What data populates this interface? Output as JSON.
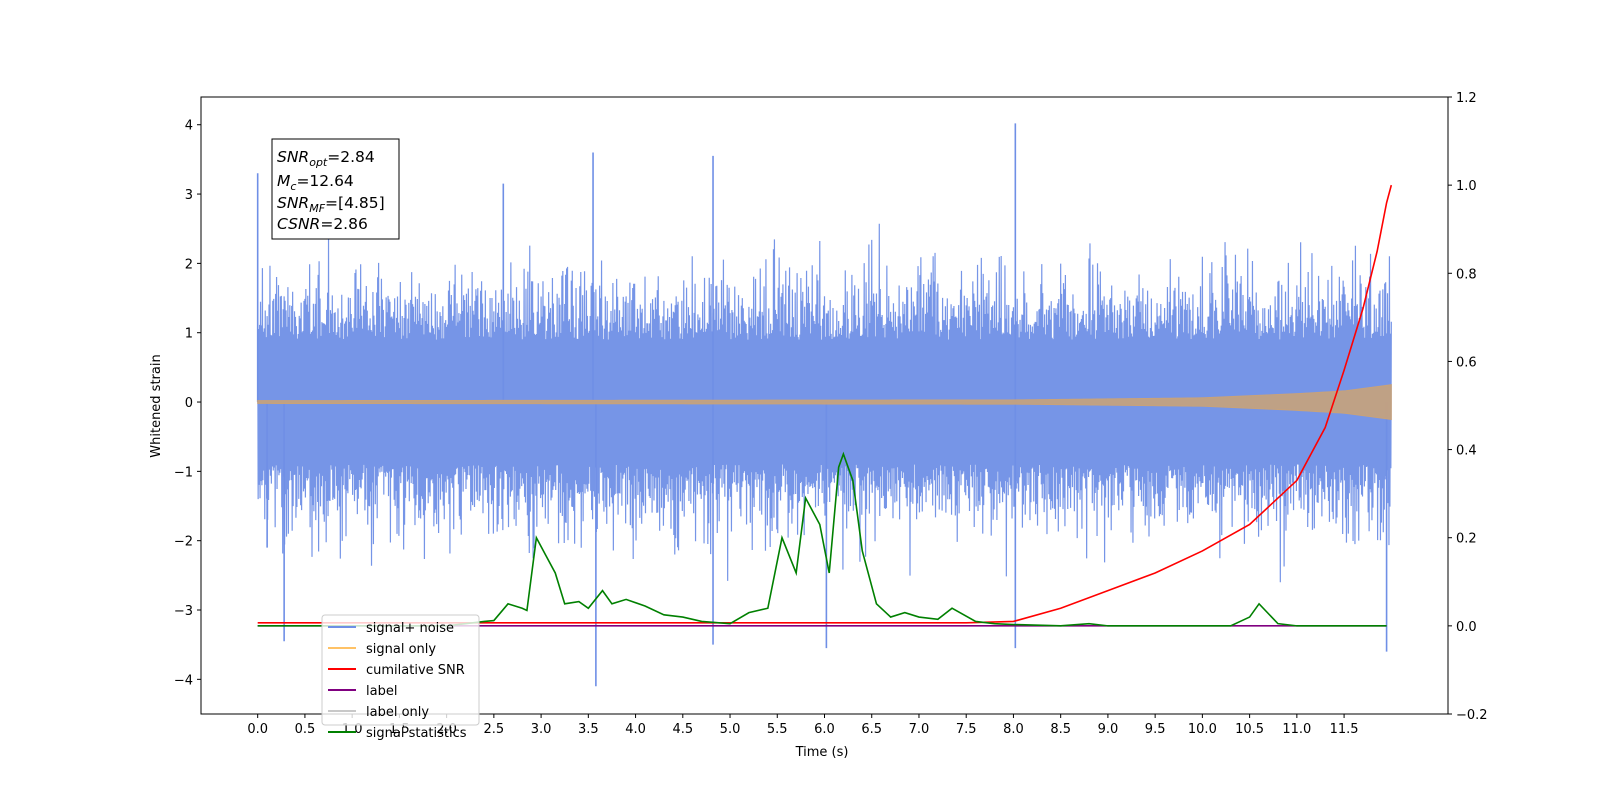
{
  "chart_data": {
    "type": "line",
    "title": "",
    "xlabel": "Time (s)",
    "ylabel": "Whitened strain",
    "xlim": [
      -0.6,
      12.6
    ],
    "ylim": [
      -4.5,
      4.4
    ],
    "y2lim": [
      -0.2,
      1.2
    ],
    "xticks": [
      "0.0",
      "0.5",
      "1.0",
      "1.5",
      "2.0",
      "2.5",
      "3.0",
      "3.5",
      "4.0",
      "4.5",
      "5.0",
      "5.5",
      "6.0",
      "6.5",
      "7.0",
      "7.5",
      "8.0",
      "8.5",
      "9.0",
      "9.5",
      "10.0",
      "10.5",
      "11.0",
      "11.5"
    ],
    "yticks": [
      4,
      3,
      2,
      1,
      0,
      -1,
      -2,
      -3,
      -4
    ],
    "y2ticks": [
      "1.2",
      "1.0",
      "0.8",
      "0.6",
      "0.4",
      "0.2",
      "0.0",
      "−0.2"
    ],
    "ytick_labels": [
      "4",
      "3",
      "2",
      "1",
      "0",
      "−1",
      "−2",
      "−3",
      "−4"
    ],
    "grid": false,
    "legend_position": "lower-left",
    "legend": [
      {
        "name": "signal+ noise",
        "color": "#6f8fe6"
      },
      {
        "name": "signal only",
        "color": "#ffc266"
      },
      {
        "name": "cumilative SNR",
        "color": "#ff0000"
      },
      {
        "name": "label",
        "color": "#800080"
      },
      {
        "name": "label only",
        "color": "#c8c8c8"
      },
      {
        "name": "signal statistics",
        "color": "#008000"
      }
    ],
    "stats_box": {
      "snr_opt_label": "SNR",
      "snr_opt_sub": "opt",
      "snr_opt_value": "=2.84",
      "mc_label": "M",
      "mc_sub": "c",
      "mc_value": "=12.64",
      "snr_mf_label": "SNR",
      "snr_mf_sub": "MF",
      "snr_mf_value": "=[4.85]",
      "csnr_label": "CSNR",
      "csnr_value": "=2.86"
    },
    "series": [
      {
        "name": "signal+ noise",
        "axis": "left",
        "note": "whitened noisy strain, amplitude approx 1 with spikes to ~4",
        "peaks": [
          {
            "x": 0.0,
            "y": 3.3
          },
          {
            "x": 0.1,
            "y": -2.1
          },
          {
            "x": 0.28,
            "y": -3.45
          },
          {
            "x": 2.6,
            "y": 3.15
          },
          {
            "x": 3.55,
            "y": 3.6
          },
          {
            "x": 3.58,
            "y": -4.1
          },
          {
            "x": 4.82,
            "y": 3.55
          },
          {
            "x": 4.82,
            "y": -3.5
          },
          {
            "x": 6.02,
            "y": -3.55
          },
          {
            "x": 8.02,
            "y": 4.02
          },
          {
            "x": 8.02,
            "y": -3.55
          },
          {
            "x": 11.95,
            "y": -3.6
          }
        ]
      },
      {
        "name": "signal only",
        "axis": "left",
        "note": "chirp amplitude grows toward merger",
        "envelope": [
          [
            0.0,
            0.02
          ],
          [
            8.0,
            0.03
          ],
          [
            10.0,
            0.06
          ],
          [
            11.0,
            0.12
          ],
          [
            11.5,
            0.16
          ],
          [
            12.0,
            0.25
          ]
        ]
      },
      {
        "name": "cumilative SNR",
        "axis": "right",
        "points": [
          [
            0.0,
            0.007
          ],
          [
            7.5,
            0.007
          ],
          [
            8.0,
            0.01
          ],
          [
            8.5,
            0.04
          ],
          [
            9.0,
            0.08
          ],
          [
            9.5,
            0.12
          ],
          [
            10.0,
            0.17
          ],
          [
            10.5,
            0.23
          ],
          [
            11.0,
            0.33
          ],
          [
            11.3,
            0.45
          ],
          [
            11.5,
            0.58
          ],
          [
            11.7,
            0.72
          ],
          [
            11.85,
            0.85
          ],
          [
            11.95,
            0.96
          ],
          [
            12.0,
            1.0
          ]
        ]
      },
      {
        "name": "label",
        "axis": "right",
        "points": [
          [
            0.0,
            0.0
          ],
          [
            11.95,
            0.0
          ]
        ]
      },
      {
        "name": "signal statistics",
        "axis": "right",
        "points": [
          [
            0.0,
            0.0
          ],
          [
            2.0,
            0.0
          ],
          [
            2.2,
            0.005
          ],
          [
            2.4,
            0.01
          ],
          [
            2.5,
            0.012
          ],
          [
            2.65,
            0.05
          ],
          [
            2.8,
            0.04
          ],
          [
            2.85,
            0.035
          ],
          [
            2.95,
            0.2
          ],
          [
            3.05,
            0.16
          ],
          [
            3.15,
            0.12
          ],
          [
            3.25,
            0.05
          ],
          [
            3.4,
            0.055
          ],
          [
            3.5,
            0.04
          ],
          [
            3.65,
            0.08
          ],
          [
            3.75,
            0.05
          ],
          [
            3.9,
            0.06
          ],
          [
            4.1,
            0.045
          ],
          [
            4.3,
            0.025
          ],
          [
            4.5,
            0.02
          ],
          [
            4.7,
            0.01
          ],
          [
            5.0,
            0.005
          ],
          [
            5.2,
            0.03
          ],
          [
            5.4,
            0.04
          ],
          [
            5.55,
            0.2
          ],
          [
            5.7,
            0.12
          ],
          [
            5.8,
            0.29
          ],
          [
            5.95,
            0.23
          ],
          [
            6.05,
            0.12
          ],
          [
            6.15,
            0.36
          ],
          [
            6.2,
            0.39
          ],
          [
            6.3,
            0.33
          ],
          [
            6.4,
            0.17
          ],
          [
            6.55,
            0.05
          ],
          [
            6.7,
            0.02
          ],
          [
            6.85,
            0.03
          ],
          [
            7.0,
            0.02
          ],
          [
            7.2,
            0.015
          ],
          [
            7.35,
            0.04
          ],
          [
            7.6,
            0.01
          ],
          [
            7.8,
            0.005
          ],
          [
            8.0,
            0.003
          ],
          [
            8.5,
            0.0
          ],
          [
            8.8,
            0.005
          ],
          [
            9.0,
            0.0
          ],
          [
            10.3,
            0.0
          ],
          [
            10.5,
            0.02
          ],
          [
            10.6,
            0.05
          ],
          [
            10.8,
            0.005
          ],
          [
            11.0,
            0.0
          ],
          [
            11.95,
            0.0
          ]
        ]
      }
    ]
  }
}
